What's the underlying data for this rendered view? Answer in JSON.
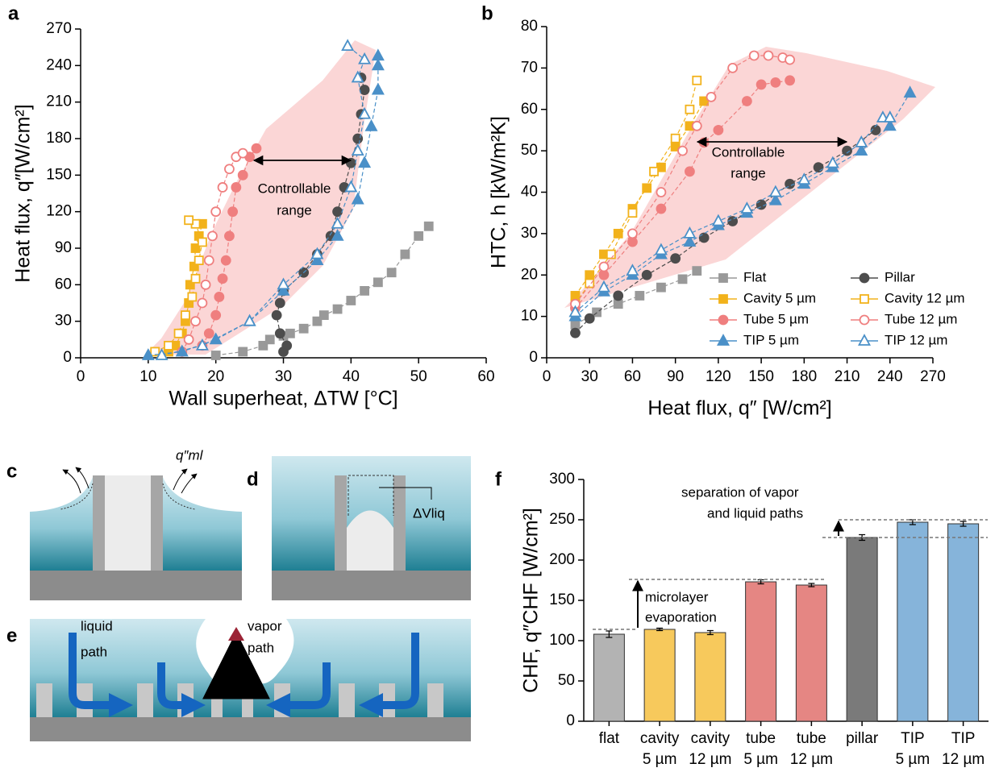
{
  "panel_labels": [
    "a",
    "b",
    "c",
    "d",
    "e",
    "f"
  ],
  "diagrams": {
    "c_flux": "q″ml",
    "d_volume": "ΔVliq",
    "e_liquid": [
      "liquid",
      "path"
    ],
    "e_vapor": [
      "vapor",
      "path"
    ]
  },
  "chart_data": [
    {
      "type": "line",
      "x_label": "Wall superheat, ΔTW [°C]",
      "y_label": "Heat flux, q″[W/cm²]",
      "xlim": [
        0,
        60
      ],
      "xticks": [
        0,
        10,
        20,
        30,
        40,
        50,
        60
      ],
      "ylim": [
        0,
        270
      ],
      "yticks": [
        0,
        30,
        60,
        90,
        120,
        150,
        180,
        210,
        240,
        270
      ],
      "legend": false,
      "annotation": [
        "Controllable",
        "range"
      ],
      "series": [
        {
          "color": "#999999",
          "marker": "square",
          "filled": true,
          "x": [
            20,
            24,
            27,
            28,
            30,
            31,
            33,
            35,
            36,
            38,
            40,
            42,
            44,
            46,
            48,
            50,
            51.5
          ],
          "values": [
            2,
            5,
            10,
            15,
            18,
            20,
            24,
            30,
            35,
            40,
            47,
            55,
            62,
            70,
            85,
            100,
            108
          ]
        },
        {
          "color": "#4d4d4d",
          "marker": "circle",
          "filled": true,
          "x": [
            30,
            30.5,
            29.5,
            29,
            29.5,
            30,
            33,
            35,
            37,
            38,
            39,
            40,
            41,
            41.5,
            42,
            41.5
          ],
          "values": [
            5,
            10,
            20,
            35,
            45,
            55,
            70,
            85,
            100,
            120,
            140,
            160,
            180,
            200,
            220,
            230
          ]
        },
        {
          "color": "#f2b21b",
          "marker": "square",
          "filled": true,
          "x": [
            13,
            14,
            15,
            15.5,
            16,
            16.2,
            16.8,
            17,
            17.5,
            18
          ],
          "values": [
            5,
            10,
            20,
            30,
            45,
            60,
            75,
            90,
            100,
            110
          ]
        },
        {
          "color": "#f2b21b",
          "marker": "square",
          "filled": false,
          "x": [
            11,
            13,
            14.5,
            15.5,
            16.5,
            17,
            17.5,
            18,
            17,
            16
          ],
          "values": [
            5,
            10,
            20,
            35,
            50,
            65,
            80,
            95,
            110,
            113
          ]
        },
        {
          "color": "#ef7f7f",
          "marker": "circle",
          "filled": true,
          "x": [
            18,
            19,
            20,
            20.5,
            21,
            21.5,
            22,
            22.5,
            23,
            24,
            25,
            26
          ],
          "values": [
            10,
            20,
            35,
            50,
            65,
            80,
            100,
            120,
            140,
            150,
            165,
            172
          ]
        },
        {
          "color": "#ef7f7f",
          "marker": "circle",
          "filled": false,
          "x": [
            15,
            16,
            17,
            18,
            18.5,
            19,
            19.5,
            20,
            21,
            22,
            23,
            24
          ],
          "values": [
            5,
            15,
            30,
            45,
            60,
            80,
            100,
            120,
            140,
            155,
            165,
            168
          ]
        },
        {
          "color": "#4a90c8",
          "marker": "triangle",
          "filled": true,
          "x": [
            10,
            15,
            20,
            25,
            30,
            35,
            38,
            41,
            42,
            43,
            44,
            44,
            44
          ],
          "values": [
            2,
            5,
            15,
            30,
            55,
            80,
            100,
            130,
            160,
            190,
            220,
            240,
            248
          ]
        },
        {
          "color": "#4a90c8",
          "marker": "triangle",
          "filled": false,
          "x": [
            12,
            18,
            25,
            30,
            35,
            38,
            40,
            41,
            42,
            41,
            42,
            39.5
          ],
          "values": [
            2,
            10,
            30,
            60,
            85,
            110,
            140,
            170,
            200,
            230,
            245,
            256
          ]
        }
      ]
    },
    {
      "type": "line",
      "x_label": "Heat flux, q″ [W/cm²]",
      "y_label": "HTC, h [kW/m²K]",
      "xlim": [
        0,
        270
      ],
      "xticks": [
        0,
        30,
        60,
        90,
        120,
        150,
        180,
        210,
        240,
        270
      ],
      "ylim": [
        0,
        80
      ],
      "yticks": [
        0,
        10,
        20,
        30,
        40,
        50,
        60,
        70,
        80
      ],
      "legend": true,
      "annotation": [
        "Controllable",
        "range"
      ],
      "series": [
        {
          "name": "Flat",
          "color": "#999999",
          "marker": "square",
          "filled": true,
          "x": [
            20,
            35,
            50,
            65,
            80,
            95,
            105
          ],
          "values": [
            8,
            11,
            13,
            15,
            17,
            19,
            21
          ]
        },
        {
          "name": "Pillar",
          "color": "#4d4d4d",
          "marker": "circle",
          "filled": true,
          "x": [
            20,
            30,
            50,
            70,
            90,
            110,
            130,
            150,
            170,
            190,
            210,
            230
          ],
          "values": [
            6,
            9.5,
            15,
            20,
            24,
            29,
            33,
            37,
            42,
            46,
            50,
            55
          ]
        },
        {
          "name": "Cavity 5 µm",
          "color": "#f2b21b",
          "marker": "square",
          "filled": true,
          "x": [
            20,
            30,
            40,
            50,
            60,
            70,
            80,
            90,
            100,
            110
          ],
          "values": [
            15,
            20,
            25,
            30,
            36,
            41,
            46,
            51,
            56,
            62
          ]
        },
        {
          "name": "Cavity 12 µm",
          "color": "#f2b21b",
          "marker": "square",
          "filled": false,
          "x": [
            20,
            30,
            45,
            60,
            75,
            90,
            100,
            105
          ],
          "values": [
            13,
            18,
            25,
            35,
            45,
            53,
            60,
            67
          ]
        },
        {
          "name": "Tube 5 µm",
          "color": "#ef7f7f",
          "marker": "circle",
          "filled": true,
          "x": [
            20,
            40,
            60,
            80,
            100,
            110,
            120,
            140,
            150,
            160,
            170
          ],
          "values": [
            12,
            20,
            28,
            36,
            45,
            52,
            55,
            62,
            66,
            66.5,
            67
          ]
        },
        {
          "name": "Tube 12 µm",
          "color": "#ef7f7f",
          "marker": "circle",
          "filled": false,
          "x": [
            20,
            40,
            60,
            80,
            95,
            105,
            115,
            130,
            145,
            155,
            165,
            170
          ],
          "values": [
            13,
            22,
            30,
            40,
            50,
            56,
            63,
            70,
            73,
            73,
            72.5,
            72
          ]
        },
        {
          "name": "TIP 5 µm",
          "color": "#4a90c8",
          "marker": "triangle",
          "filled": true,
          "x": [
            20,
            40,
            60,
            80,
            100,
            120,
            140,
            160,
            180,
            200,
            220,
            240,
            254
          ],
          "values": [
            10,
            16,
            20,
            25,
            28,
            32,
            35,
            38,
            42,
            46,
            50,
            56,
            64
          ]
        },
        {
          "name": "TIP 12 µm",
          "color": "#4a90c8",
          "marker": "triangle",
          "filled": false,
          "x": [
            20,
            40,
            60,
            80,
            100,
            120,
            140,
            160,
            180,
            200,
            220,
            235,
            240
          ],
          "values": [
            11,
            17,
            21,
            26,
            30,
            33,
            36,
            40,
            43,
            47,
            52,
            58,
            58
          ]
        }
      ]
    },
    {
      "type": "bar",
      "y_label": "CHF, q″CHF [W/cm²]",
      "categories": [
        [
          "flat"
        ],
        [
          "cavity",
          "5 µm"
        ],
        [
          "cavity",
          "12 µm"
        ],
        [
          "tube",
          "5 µm"
        ],
        [
          "tube",
          "12 µm"
        ],
        [
          "pillar"
        ],
        [
          "TIP",
          "5 µm"
        ],
        [
          "TIP",
          "12 µm"
        ]
      ],
      "values": [
        108,
        114,
        110,
        173,
        169,
        228,
        247,
        245
      ],
      "errors": [
        4,
        1.5,
        2.5,
        2.5,
        2,
        3.5,
        3,
        3
      ],
      "colors": [
        "#b3b3b3",
        "#f7c95c",
        "#f7c95c",
        "#e58683",
        "#e58683",
        "#7a7a7a",
        "#86b4da",
        "#86b4da"
      ],
      "ylim": [
        0,
        300
      ],
      "yticks": [
        0,
        50,
        100,
        150,
        200,
        250,
        300
      ],
      "reference_lines": [
        114,
        176,
        228,
        250
      ],
      "annotations": [
        [
          "microlayer",
          "evaporation"
        ],
        [
          "separation of vapor",
          "and liquid paths"
        ]
      ]
    }
  ]
}
